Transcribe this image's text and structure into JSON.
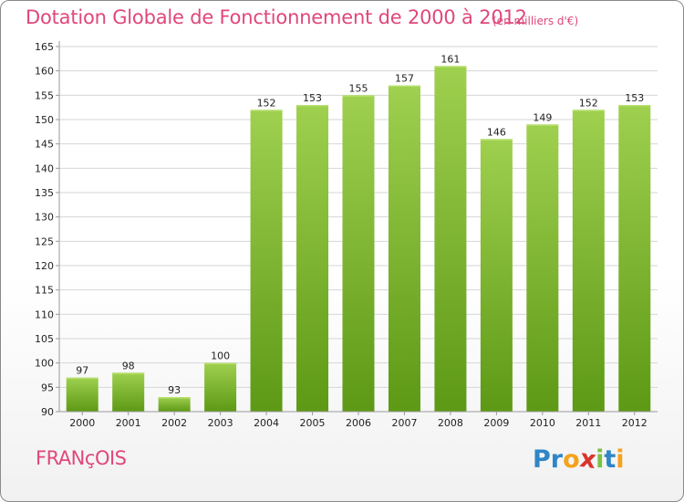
{
  "header": {
    "title": "Dotation Globale de Fonctionnement de 2000 à 2012",
    "unit": "(en milliers d'€)"
  },
  "footer": {
    "commune": "FRANçOIS",
    "logo_letters": [
      {
        "ch": "P",
        "color": "#2f86c7"
      },
      {
        "ch": "r",
        "color": "#2f86c7"
      },
      {
        "ch": "o",
        "color": "#f5a21b"
      },
      {
        "ch": "x",
        "color": "#d9342b"
      },
      {
        "ch": "i",
        "color": "#7cc142"
      },
      {
        "ch": "t",
        "color": "#2f86c7"
      },
      {
        "ch": "i",
        "color": "#f5a21b"
      }
    ]
  },
  "colors": {
    "title": "#e0477a",
    "bar_top": "#9fd04f",
    "bar_bottom": "#5d9915",
    "grid": "#d6d6d6",
    "axis": "#999999"
  },
  "chart_data": {
    "type": "bar",
    "title": "Dotation Globale de Fonctionnement de 2000 à 2012",
    "subtitle": "(en milliers d'€)",
    "categories": [
      "2000",
      "2001",
      "2002",
      "2003",
      "2004",
      "2005",
      "2006",
      "2007",
      "2008",
      "2009",
      "2010",
      "2011",
      "2012"
    ],
    "values": [
      97,
      98,
      93,
      100,
      152,
      153,
      155,
      157,
      161,
      146,
      149,
      152,
      153
    ],
    "ylim": [
      90,
      165
    ],
    "yticks": [
      90,
      95,
      100,
      105,
      110,
      115,
      120,
      125,
      130,
      135,
      140,
      145,
      150,
      155,
      160,
      165
    ],
    "grid": true,
    "data_labels": true
  }
}
